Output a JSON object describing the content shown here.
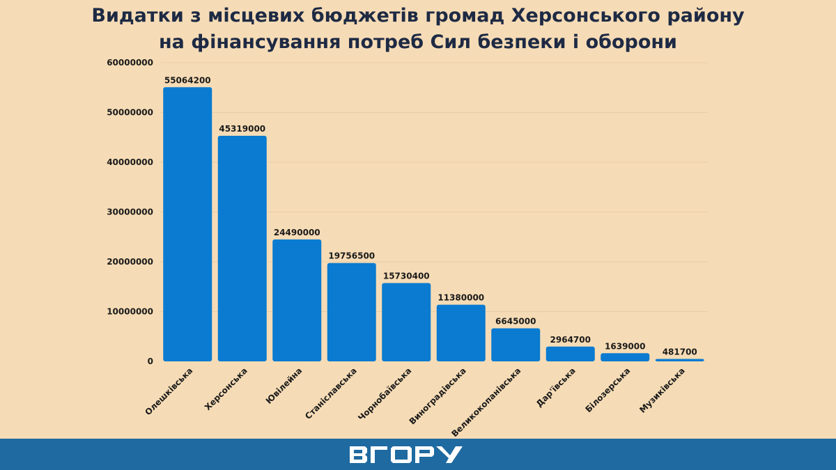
{
  "chart_data": {
    "type": "bar",
    "title": "Видатки з місцевих бюджетів громад Херсонського району",
    "subtitle": "на фінансування потреб Сил безпеки і оборони",
    "categories": [
      "Олешківська",
      "Херсонська",
      "Ювілейна",
      "Станіславська",
      "Чорнобаївська",
      "Виноградівська",
      "Великокопанівська",
      "Дар'ївська",
      "Білозерська",
      "Музиківська"
    ],
    "values": [
      55064200,
      45319000,
      24490000,
      19756500,
      15730400,
      11380000,
      6645000,
      2964700,
      1639000,
      481700
    ],
    "data_labels": [
      "55064200",
      "45319000",
      "24490000",
      "19756500",
      "15730400",
      "11380000",
      "6645000",
      "2964700",
      "1639000",
      "481700"
    ],
    "yticks": [
      "0",
      "10000000",
      "20000000",
      "30000000",
      "40000000",
      "50000000",
      "60000000"
    ],
    "ylim": [
      0,
      60000000
    ],
    "xlabel": "",
    "ylabel": "",
    "grid": true,
    "bar_color": "#0a7bd0",
    "background": "#f6dcb6"
  },
  "footer": {
    "logo_text": "ВГОРУ",
    "color": "#1f6aa0"
  }
}
